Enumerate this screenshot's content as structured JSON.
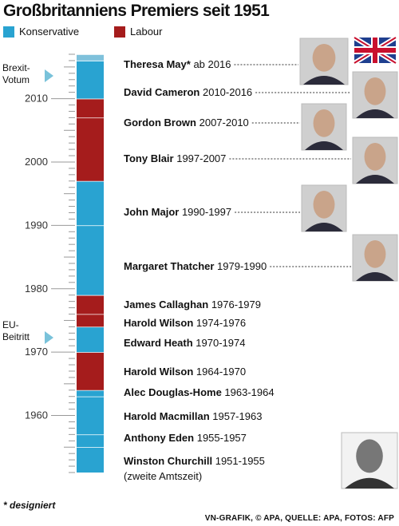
{
  "title": "Großbritanniens Premiers seit 1951",
  "colors": {
    "konservativ": "#29a3d1",
    "labour": "#a51c1c",
    "tick": "#999999",
    "track": "#e6e6e6"
  },
  "legend": [
    {
      "label": "Konservative",
      "color": "#29a3d1"
    },
    {
      "label": "Labour",
      "color": "#a51c1c"
    }
  ],
  "events": [
    {
      "line1": "Brexit-",
      "line2": "Votum"
    },
    {
      "line1": "EU-",
      "line2": "Beitritt"
    }
  ],
  "footnote": "* designiert",
  "source": "VN-GRAFIK, © APA, QUELLE: APA, FOTOS: AFP",
  "chart_data": {
    "type": "bar",
    "title": "Großbritanniens Premiers seit 1951",
    "axis": {
      "ticks": [
        1960,
        1970,
        1980,
        1990,
        2000,
        2010
      ]
    },
    "series": [
      {
        "name": "Konservative",
        "color": "#29a3d1"
      },
      {
        "name": "Labour",
        "color": "#a51c1c"
      }
    ],
    "segments": [
      {
        "start": 1951,
        "end": 1955,
        "party": "Konservative"
      },
      {
        "start": 1955,
        "end": 1957,
        "party": "Konservative"
      },
      {
        "start": 1957,
        "end": 1963,
        "party": "Konservative"
      },
      {
        "start": 1963,
        "end": 1964,
        "party": "Konservative"
      },
      {
        "start": 1964,
        "end": 1970,
        "party": "Labour"
      },
      {
        "start": 1970,
        "end": 1974,
        "party": "Konservative"
      },
      {
        "start": 1974,
        "end": 1976,
        "party": "Labour"
      },
      {
        "start": 1976,
        "end": 1979,
        "party": "Labour"
      },
      {
        "start": 1979,
        "end": 1990,
        "party": "Konservative"
      },
      {
        "start": 1990,
        "end": 1997,
        "party": "Konservative"
      },
      {
        "start": 1997,
        "end": 2007,
        "party": "Labour"
      },
      {
        "start": 2007,
        "end": 2010,
        "party": "Labour"
      },
      {
        "start": 2010,
        "end": 2016,
        "party": "Konservative"
      },
      {
        "start": 2016,
        "end": 2017,
        "party": "Konservative"
      }
    ],
    "premiers": [
      {
        "name": "Theresa May*",
        "years": " ab 2016",
        "photo": true,
        "photo_icon": "theresa-may-photo"
      },
      {
        "name": "David Cameron",
        "years": " 2010-2016",
        "photo": true,
        "photo_icon": "david-cameron-photo"
      },
      {
        "name": "Gordon Brown",
        "years": " 2007-2010",
        "photo": true,
        "photo_icon": "gordon-brown-photo"
      },
      {
        "name": "Tony Blair",
        "years": " 1997-2007",
        "photo": true,
        "photo_icon": "tony-blair-photo"
      },
      {
        "name": "John Major",
        "years": " 1990-1997",
        "photo": true,
        "photo_icon": "john-major-photo"
      },
      {
        "name": "Margaret Thatcher",
        "years": " 1979-1990",
        "photo": true,
        "photo_icon": "margaret-thatcher-photo"
      },
      {
        "name": "James Callaghan",
        "years": " 1976-1979",
        "photo": false
      },
      {
        "name": "Harold Wilson",
        "years": " 1974-1976",
        "photo": false
      },
      {
        "name": "Edward Heath",
        "years": " 1970-1974",
        "photo": false
      },
      {
        "name": "Harold Wilson",
        "years": " 1964-1970",
        "photo": false
      },
      {
        "name": "Alec Douglas-Home",
        "years": " 1963-1964",
        "photo": false
      },
      {
        "name": "Harold Macmillan",
        "years": " 1957-1963",
        "photo": false
      },
      {
        "name": "Anthony Eden",
        "years": " 1955-1957",
        "photo": false
      },
      {
        "name": "Winston Churchill",
        "years": " 1951-1955",
        "extra": "(zweite Amtszeit)",
        "photo": true,
        "photo_icon": "winston-churchill-photo"
      }
    ],
    "flag_icon": "union-jack-flag"
  }
}
